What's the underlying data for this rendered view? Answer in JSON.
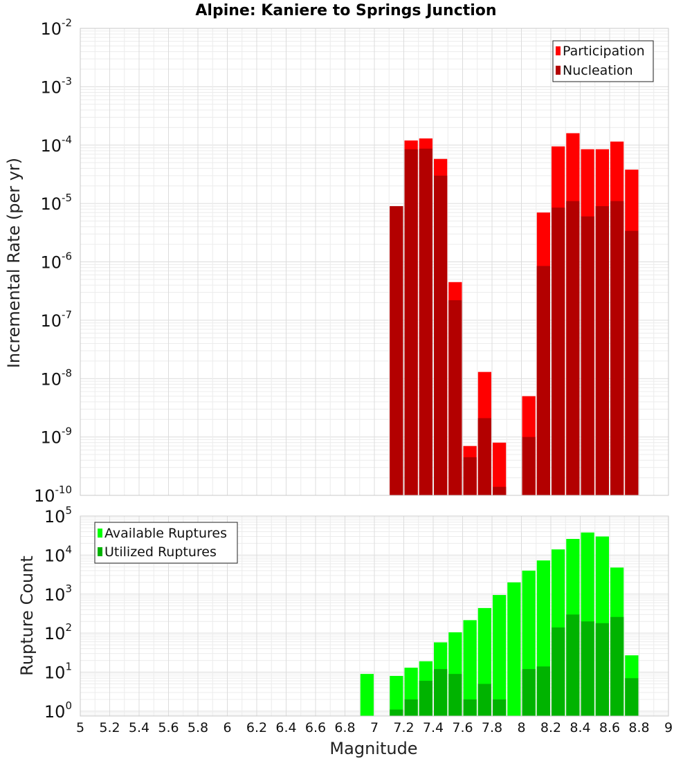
{
  "title": "Alpine: Kaniere to Springs Junction",
  "xlabel": "Magnitude",
  "x_ticks": [
    5,
    5.2,
    5.4,
    5.6,
    5.8,
    6,
    6.2,
    6.4,
    6.6,
    6.8,
    7,
    7.2,
    7.4,
    7.6,
    7.8,
    8,
    8.2,
    8.4,
    8.6,
    8.8,
    9
  ],
  "chart_data": [
    {
      "type": "bar",
      "ylabel": "Incremental Rate (per yr)",
      "y_scale": "log",
      "ylim": [
        1e-10,
        0.01
      ],
      "xlim": [
        5,
        9
      ],
      "grid": true,
      "legend_position": "top-right",
      "y_tick_exponents": [
        -10,
        -9,
        -8,
        -7,
        -6,
        -5,
        -4,
        -3,
        -2
      ],
      "series": [
        {
          "name": "Participation",
          "color": "#ff0000",
          "points": [
            {
              "x": 7.15,
              "y": 9e-06
            },
            {
              "x": 7.25,
              "y": 0.00012
            },
            {
              "x": 7.35,
              "y": 0.00013
            },
            {
              "x": 7.45,
              "y": 5.8e-05
            },
            {
              "x": 7.55,
              "y": 4.5e-07
            },
            {
              "x": 7.65,
              "y": 7e-10
            },
            {
              "x": 7.75,
              "y": 1.3e-08
            },
            {
              "x": 7.85,
              "y": 8e-10
            },
            {
              "x": 8.05,
              "y": 5e-09
            },
            {
              "x": 8.15,
              "y": 7e-06
            },
            {
              "x": 8.25,
              "y": 9.5e-05
            },
            {
              "x": 8.35,
              "y": 0.00016
            },
            {
              "x": 8.45,
              "y": 8.5e-05
            },
            {
              "x": 8.55,
              "y": 8.5e-05
            },
            {
              "x": 8.65,
              "y": 0.000115
            },
            {
              "x": 8.75,
              "y": 3.8e-05
            }
          ]
        },
        {
          "name": "Nucleation",
          "color": "#b30000",
          "points": [
            {
              "x": 7.15,
              "y": 9e-06
            },
            {
              "x": 7.25,
              "y": 8.5e-05
            },
            {
              "x": 7.35,
              "y": 8.7e-05
            },
            {
              "x": 7.45,
              "y": 3e-05
            },
            {
              "x": 7.55,
              "y": 2.2e-07
            },
            {
              "x": 7.65,
              "y": 4.5e-10
            },
            {
              "x": 7.75,
              "y": 2.1e-09
            },
            {
              "x": 7.85,
              "y": 1.4e-10
            },
            {
              "x": 8.05,
              "y": 1e-09
            },
            {
              "x": 8.15,
              "y": 8.5e-07
            },
            {
              "x": 8.25,
              "y": 8.5e-06
            },
            {
              "x": 8.35,
              "y": 1.1e-05
            },
            {
              "x": 8.45,
              "y": 6e-06
            },
            {
              "x": 8.55,
              "y": 9e-06
            },
            {
              "x": 8.65,
              "y": 1.1e-05
            },
            {
              "x": 8.75,
              "y": 3.4e-06
            }
          ]
        }
      ]
    },
    {
      "type": "bar",
      "ylabel": "Rupture Count",
      "y_scale": "log",
      "ylim": [
        0.75,
        100000.0
      ],
      "xlim": [
        5,
        9
      ],
      "grid": true,
      "legend_position": "top-left",
      "y_tick_exponents": [
        0,
        1,
        2,
        3,
        4,
        5
      ],
      "series": [
        {
          "name": "Available Ruptures",
          "color": "#00ff00",
          "points": [
            {
              "x": 6.95,
              "y": 9
            },
            {
              "x": 7.15,
              "y": 8
            },
            {
              "x": 7.25,
              "y": 13
            },
            {
              "x": 7.35,
              "y": 19
            },
            {
              "x": 7.45,
              "y": 58
            },
            {
              "x": 7.55,
              "y": 105
            },
            {
              "x": 7.65,
              "y": 215
            },
            {
              "x": 7.75,
              "y": 440
            },
            {
              "x": 7.85,
              "y": 950
            },
            {
              "x": 7.95,
              "y": 2000
            },
            {
              "x": 8.05,
              "y": 4000
            },
            {
              "x": 8.15,
              "y": 7300
            },
            {
              "x": 8.25,
              "y": 14000
            },
            {
              "x": 8.35,
              "y": 26000
            },
            {
              "x": 8.45,
              "y": 38000
            },
            {
              "x": 8.55,
              "y": 30000
            },
            {
              "x": 8.65,
              "y": 4800
            },
            {
              "x": 8.75,
              "y": 27
            }
          ]
        },
        {
          "name": "Utilized Ruptures",
          "color": "#00b300",
          "points": [
            {
              "x": 7.15,
              "y": 1.1
            },
            {
              "x": 7.25,
              "y": 2
            },
            {
              "x": 7.35,
              "y": 6
            },
            {
              "x": 7.45,
              "y": 12
            },
            {
              "x": 7.55,
              "y": 9
            },
            {
              "x": 7.65,
              "y": 2
            },
            {
              "x": 7.75,
              "y": 5
            },
            {
              "x": 7.85,
              "y": 2
            },
            {
              "x": 8.05,
              "y": 12
            },
            {
              "x": 8.15,
              "y": 14
            },
            {
              "x": 8.25,
              "y": 140
            },
            {
              "x": 8.35,
              "y": 300
            },
            {
              "x": 8.45,
              "y": 200
            },
            {
              "x": 8.55,
              "y": 180
            },
            {
              "x": 8.65,
              "y": 260
            },
            {
              "x": 8.75,
              "y": 7
            }
          ]
        }
      ]
    }
  ]
}
